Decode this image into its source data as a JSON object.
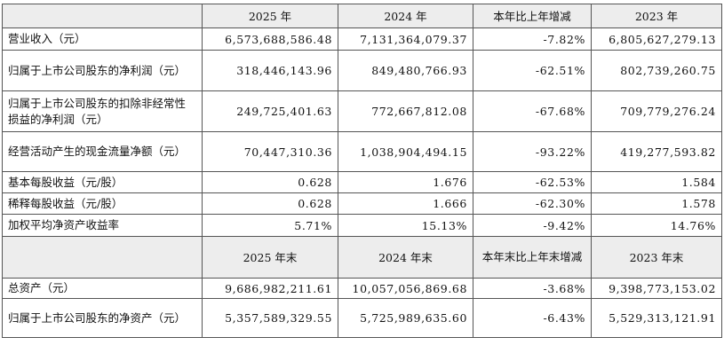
{
  "header1": {
    "col1": "2025 年",
    "col2": "2024 年",
    "col3": "本年比上年增减",
    "col4": "2023 年"
  },
  "rows1": [
    {
      "label": "营业收入（元）",
      "v1": "6,573,688,586.48",
      "v2": "7,131,364,079.37",
      "v3": "-7.82%",
      "v4": "6,805,627,279.13"
    },
    {
      "label": "归属于上市公司股东的净利润（元）",
      "v1": "318,446,143.96",
      "v2": "849,480,766.93",
      "v3": "-62.51%",
      "v4": "802,739,260.75"
    },
    {
      "label": "归属于上市公司股东的扣除非经常性损益的净利润（元）",
      "v1": "249,725,401.63",
      "v2": "772,667,812.08",
      "v3": "-67.68%",
      "v4": "709,779,276.24"
    },
    {
      "label": "经营活动产生的现金流量净额（元）",
      "v1": "70,447,310.36",
      "v2": "1,038,904,494.15",
      "v3": "-93.22%",
      "v4": "419,277,593.82"
    },
    {
      "label": "基本每股收益（元/股）",
      "v1": "0.628",
      "v2": "1.676",
      "v3": "-62.53%",
      "v4": "1.584"
    },
    {
      "label": "稀释每股收益（元/股）",
      "v1": "0.628",
      "v2": "1.666",
      "v3": "-62.30%",
      "v4": "1.578"
    },
    {
      "label": "加权平均净资产收益率",
      "v1": "5.71%",
      "v2": "15.13%",
      "v3": "-9.42%",
      "v4": "14.76%"
    }
  ],
  "header2": {
    "col1": "2025 年末",
    "col2": "2024 年末",
    "col3": "本年末比上年末增减",
    "col4": "2023 年末"
  },
  "rows2": [
    {
      "label": "总资产（元）",
      "v1": "9,686,982,211.61",
      "v2": "10,057,056,869.68",
      "v3": "-3.68%",
      "v4": "9,398,773,153.02"
    },
    {
      "label": "归属于上市公司股东的净资产（元）",
      "v1": "5,357,589,329.55",
      "v2": "5,725,989,635.60",
      "v3": "-6.43%",
      "v4": "5,529,313,121.91"
    }
  ]
}
